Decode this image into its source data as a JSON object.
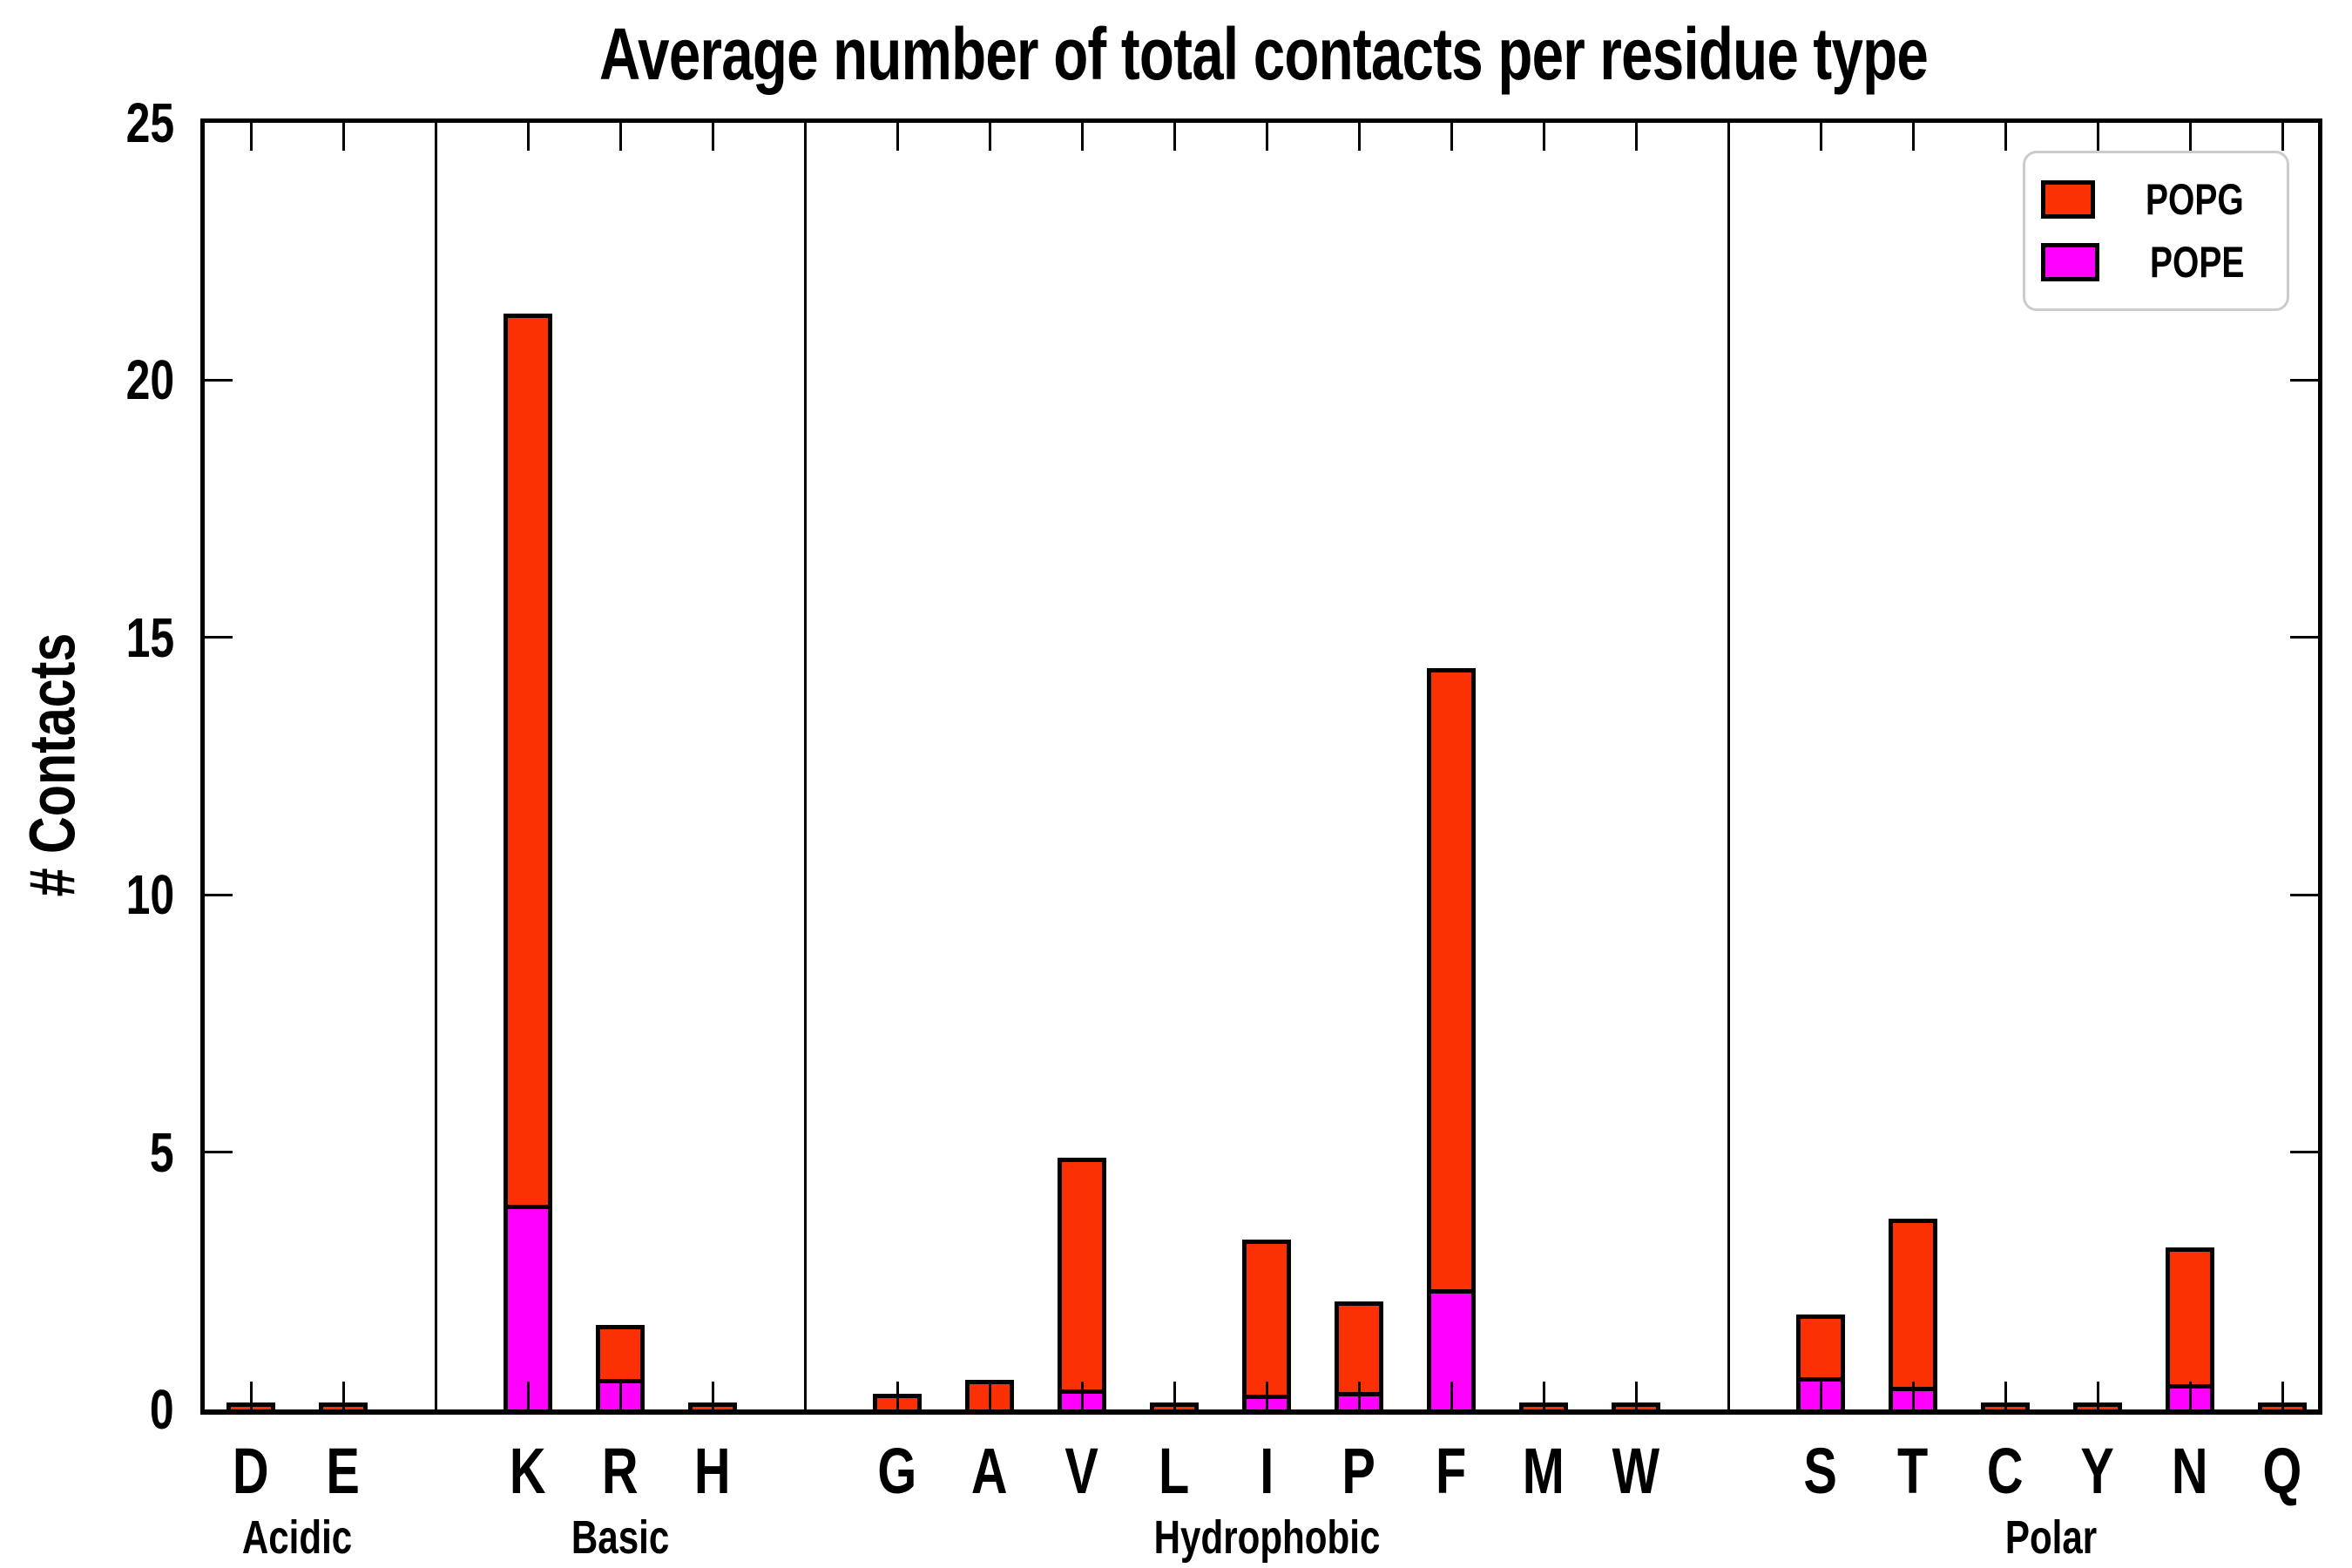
{
  "title": "Average number of total contacts per residue type",
  "y_axis": {
    "label": "# Contacts",
    "tick_labels": [
      "0",
      "5",
      "10",
      "15",
      "20",
      "25"
    ]
  },
  "x_axis": {
    "group_labels": [
      "Acidic",
      "Basic",
      "Hydrophobic",
      "Polar"
    ]
  },
  "legend": {
    "items": [
      {
        "label": "POPG",
        "color": "#fb3103"
      },
      {
        "label": "POPE",
        "color": "#ff00ff"
      }
    ]
  },
  "chart_data": {
    "type": "bar",
    "stacked": true,
    "title": "Average number of total contacts per residue type",
    "ylabel": "# Contacts",
    "xlabel": "",
    "ylim": [
      0,
      25
    ],
    "yticks": [
      0,
      5,
      10,
      15,
      20,
      25
    ],
    "grid": false,
    "legend_position": "upper right",
    "bar_edge_color": "#000000",
    "groups": [
      {
        "label": "Acidic",
        "categories": [
          "D",
          "E"
        ]
      },
      {
        "label": "Basic",
        "categories": [
          "K",
          "R",
          "H"
        ]
      },
      {
        "label": "Hydrophobic",
        "categories": [
          "G",
          "A",
          "V",
          "L",
          "I",
          "P",
          "F",
          "M",
          "W"
        ]
      },
      {
        "label": "Polar",
        "categories": [
          "S",
          "T",
          "C",
          "Y",
          "N",
          "Q"
        ]
      }
    ],
    "categories": [
      "D",
      "E",
      "K",
      "R",
      "H",
      "G",
      "A",
      "V",
      "L",
      "I",
      "P",
      "F",
      "M",
      "W",
      "S",
      "T",
      "C",
      "Y",
      "N",
      "Q"
    ],
    "series": [
      {
        "name": "POPE",
        "color": "#ff00ff",
        "values": [
          0.0,
          0.0,
          3.9,
          0.5,
          0.0,
          0.02,
          0.02,
          0.3,
          0.02,
          0.2,
          0.25,
          2.25,
          0.0,
          0.0,
          0.55,
          0.35,
          0.0,
          0.0,
          0.4,
          0.0
        ]
      },
      {
        "name": "POPG",
        "color": "#fb3103",
        "values": [
          0.03,
          0.02,
          17.4,
          1.15,
          0.03,
          0.3,
          0.58,
          4.6,
          0.13,
          3.1,
          1.85,
          12.15,
          0.04,
          0.03,
          1.3,
          3.35,
          0.03,
          0.03,
          2.75,
          0.03
        ]
      }
    ],
    "totals": [
      0.03,
      0.02,
      21.3,
      1.65,
      0.03,
      0.32,
      0.6,
      4.9,
      0.15,
      3.3,
      2.1,
      14.4,
      0.04,
      0.03,
      1.85,
      3.7,
      0.03,
      0.03,
      3.15,
      0.03
    ]
  }
}
